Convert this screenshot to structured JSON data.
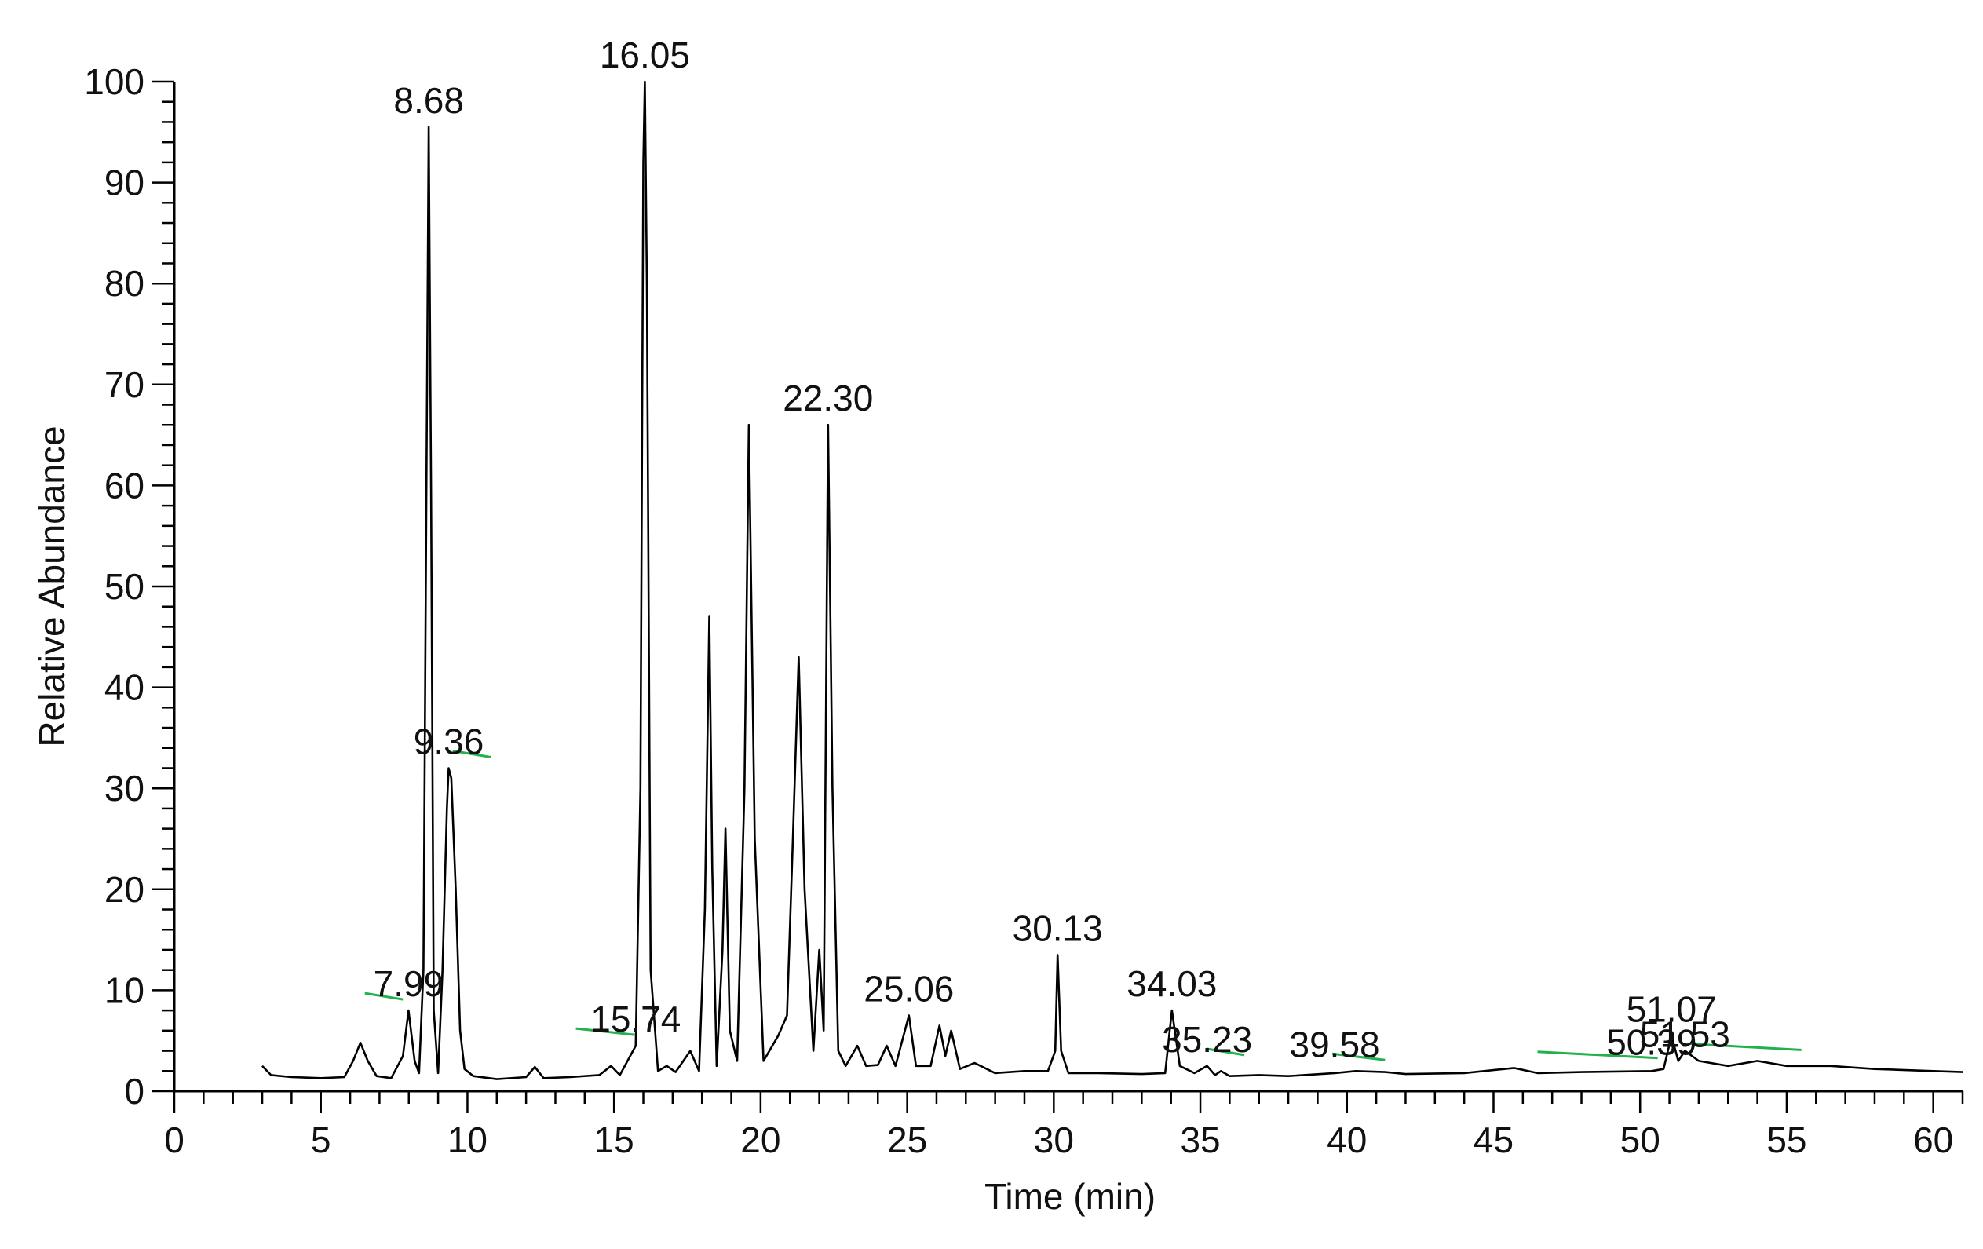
{
  "chart_data": {
    "type": "line",
    "title": "",
    "xlabel": "Time (min)",
    "ylabel": "Relative Abundance",
    "xlim": [
      0,
      61
    ],
    "ylim": [
      0,
      100
    ],
    "grid": false,
    "legend": "none",
    "x_ticks": [
      0,
      5,
      10,
      15,
      20,
      25,
      30,
      35,
      40,
      45,
      50,
      55,
      60
    ],
    "y_ticks": [
      0,
      10,
      20,
      30,
      40,
      50,
      60,
      70,
      80,
      90,
      100
    ],
    "line_color": "#000000",
    "marker_color": "#22b14c",
    "series": [
      {
        "x": [
          3.0,
          3.3,
          4.0,
          5.0,
          5.8,
          6.1,
          6.35,
          6.6,
          6.9,
          7.4,
          7.8,
          7.99,
          8.2,
          8.35,
          8.5,
          8.6,
          8.68,
          8.76,
          8.85,
          9.0,
          9.15,
          9.3,
          9.36,
          9.45,
          9.6,
          9.75,
          9.9,
          10.2,
          11.0,
          12.0,
          12.3,
          12.6,
          13.5,
          14.5,
          14.9,
          15.2,
          15.74,
          15.9,
          16.0,
          16.05,
          16.12,
          16.25,
          16.5,
          16.8,
          17.1,
          17.6,
          17.9,
          18.1,
          18.25,
          18.35,
          18.5,
          18.7,
          18.8,
          18.95,
          19.2,
          19.45,
          19.6,
          19.8,
          20.1,
          20.6,
          20.9,
          21.1,
          21.3,
          21.5,
          21.8,
          22.0,
          22.15,
          22.3,
          22.45,
          22.65,
          22.9,
          23.3,
          23.6,
          24.0,
          24.3,
          24.6,
          25.06,
          25.3,
          25.8,
          26.1,
          26.3,
          26.5,
          26.8,
          27.3,
          28.0,
          29.0,
          29.8,
          30.05,
          30.13,
          30.25,
          30.5,
          31.5,
          33.0,
          33.8,
          34.03,
          34.3,
          34.8,
          35.23,
          35.5,
          35.7,
          36.0,
          37.0,
          38.0,
          39.58,
          40.3,
          41.3,
          42.0,
          44.0,
          45.7,
          46.5,
          48.0,
          50.39,
          50.8,
          51.07,
          51.3,
          51.53,
          52.0,
          53.0,
          54.0,
          55.0,
          56.5,
          58.0,
          60.0,
          61.0
        ],
        "values": [
          2.5,
          1.6,
          1.4,
          1.3,
          1.4,
          3.0,
          4.8,
          3.0,
          1.5,
          1.3,
          3.5,
          8.0,
          3.0,
          1.8,
          12.0,
          60.0,
          95.5,
          60.0,
          8.0,
          1.8,
          12.0,
          28.0,
          32.0,
          31.0,
          20.0,
          6.0,
          2.2,
          1.5,
          1.2,
          1.4,
          2.4,
          1.3,
          1.4,
          1.6,
          2.5,
          1.6,
          4.5,
          30.0,
          92.0,
          100.0,
          80.0,
          12.0,
          2.0,
          2.5,
          1.9,
          4.0,
          2.0,
          18.0,
          47.0,
          22.0,
          2.5,
          14.0,
          26.0,
          6.0,
          3.0,
          30.0,
          66.0,
          25.0,
          3.0,
          5.5,
          7.5,
          25.0,
          43.0,
          20.0,
          4.0,
          14.0,
          6.0,
          66.0,
          30.0,
          4.0,
          2.5,
          4.5,
          2.5,
          2.6,
          4.5,
          2.5,
          7.5,
          2.5,
          2.5,
          6.5,
          3.5,
          6.0,
          2.2,
          2.8,
          1.8,
          2.0,
          2.0,
          4.0,
          13.5,
          4.0,
          1.8,
          1.8,
          1.7,
          1.8,
          8.0,
          2.5,
          1.8,
          2.5,
          1.6,
          2.0,
          1.5,
          1.6,
          1.5,
          1.8,
          2.0,
          1.9,
          1.7,
          1.8,
          2.3,
          1.8,
          1.9,
          2.0,
          2.2,
          5.5,
          3.0,
          4.0,
          3.0,
          2.5,
          3.0,
          2.5,
          2.5,
          2.2,
          2.0,
          1.9
        ]
      }
    ],
    "peak_labels": [
      {
        "label": "7.99",
        "x": 7.99,
        "y": 8.0,
        "baseline": [
          6.5,
          7.8
        ]
      },
      {
        "label": "8.68",
        "x": 8.68,
        "y": 95.5
      },
      {
        "label": "9.36",
        "x": 9.36,
        "y": 32.0,
        "baseline": [
          9.5,
          10.8
        ]
      },
      {
        "label": "15.74",
        "x": 15.74,
        "y": 4.5,
        "baseline": [
          13.7,
          15.7
        ]
      },
      {
        "label": "16.05",
        "x": 16.05,
        "y": 100.0
      },
      {
        "label": "22.30",
        "x": 22.3,
        "y": 66.0
      },
      {
        "label": "25.06",
        "x": 25.06,
        "y": 7.5
      },
      {
        "label": "30.13",
        "x": 30.13,
        "y": 13.5
      },
      {
        "label": "34.03",
        "x": 34.03,
        "y": 8.0
      },
      {
        "label": "35.23",
        "x": 35.23,
        "y": 2.5,
        "baseline": [
          35.2,
          36.5
        ]
      },
      {
        "label": "39.58",
        "x": 39.58,
        "y": 2.0,
        "baseline": [
          39.5,
          41.3
        ]
      },
      {
        "label": "50.39",
        "x": 50.39,
        "y": 2.2,
        "baseline": [
          46.5,
          50.6
        ]
      },
      {
        "label": "51.07",
        "x": 51.07,
        "y": 5.5
      },
      {
        "label": "51.53",
        "x": 51.53,
        "y": 3.0,
        "baseline": [
          51.6,
          55.5
        ]
      }
    ]
  }
}
